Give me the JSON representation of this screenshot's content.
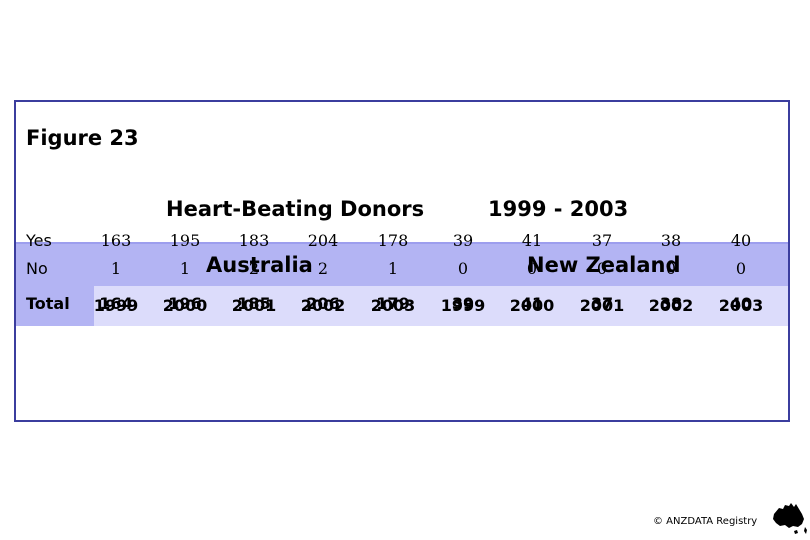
{
  "figure_label": "Figure 23",
  "title_left": "Heart-Beating Donors",
  "title_right": "1999 - 2003",
  "regions": [
    "Australia",
    "New Zealand"
  ],
  "years": [
    "1999",
    "2000",
    "2001",
    "2002",
    "2003",
    "1999",
    "2000",
    "2001",
    "2002",
    "2003"
  ],
  "rows": [
    {
      "label": "Yes",
      "values": [
        "163",
        "195",
        "183",
        "204",
        "178",
        "39",
        "41",
        "37",
        "38",
        "40"
      ]
    },
    {
      "label": "No",
      "values": [
        "1",
        "1",
        "2",
        "2",
        "1",
        "0",
        "0",
        "0",
        "0",
        "0"
      ]
    },
    {
      "label": "Total",
      "values": [
        "164",
        "196",
        "185",
        "206",
        "179",
        "39",
        "41",
        "37",
        "38",
        "40"
      ]
    }
  ],
  "copyright": "© ANZDATA Registry",
  "logo_icon": "australia-map-icon"
}
